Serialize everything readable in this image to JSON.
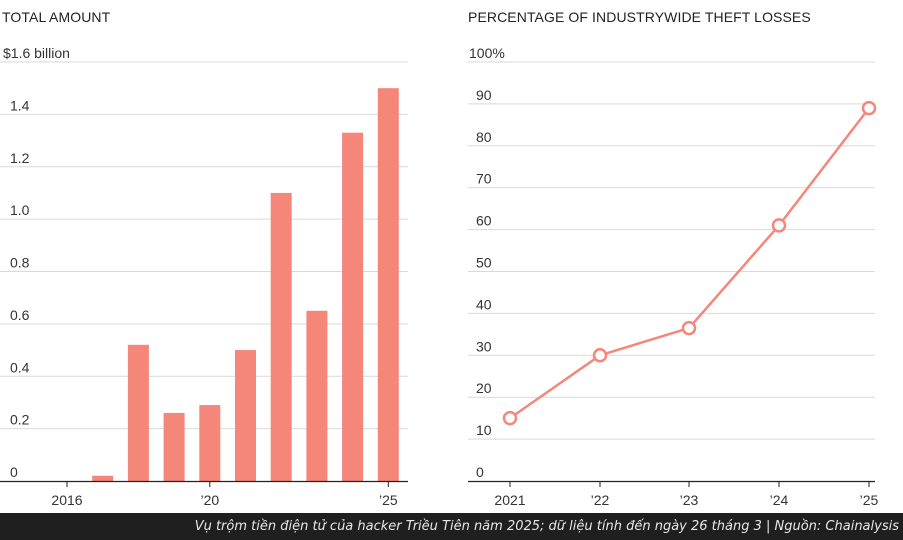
{
  "caption": "Vụ trộm tiền điện tử của hacker Triều Tiên năm 2025; dữ liệu tính đến ngày 26 tháng 3 | Nguồn: Chainalysis",
  "colors": {
    "accent": "#f4877a",
    "grid": "#d9d9d9",
    "axis": "#222222",
    "caption_bg": "#1f1f1f"
  },
  "chart_data": [
    {
      "type": "bar",
      "title": "TOTAL AMOUNT",
      "unit_label": "$1.6 billion",
      "ylim": [
        0,
        1.6
      ],
      "y_ticks": [
        0,
        0.2,
        0.4,
        0.6,
        0.8,
        1.0,
        1.2,
        1.4
      ],
      "y_tick_labels": [
        "0",
        "0.2",
        "0.4",
        "0.6",
        "0.8",
        "1.0",
        "1.2",
        "1.4"
      ],
      "categories": [
        "2016",
        "2017",
        "2018",
        "2019",
        "2020",
        "2021",
        "2022",
        "2023",
        "2024",
        "2025"
      ],
      "x_tick_labels": [
        {
          "category": "2016",
          "label": "2016"
        },
        {
          "category": "2020",
          "label": "’20"
        },
        {
          "category": "2025",
          "label": "’25"
        }
      ],
      "values": [
        0,
        0.02,
        0.52,
        0.26,
        0.29,
        0.5,
        1.1,
        0.65,
        1.33,
        1.5
      ],
      "grid": true
    },
    {
      "type": "line",
      "title": "PERCENTAGE OF INDUSTRYWIDE THEFT LOSSES",
      "unit_label": "100%",
      "ylim": [
        0,
        100
      ],
      "y_ticks": [
        0,
        10,
        20,
        30,
        40,
        50,
        60,
        70,
        80,
        90
      ],
      "y_tick_labels": [
        "0",
        "10",
        "20",
        "30",
        "40",
        "50",
        "60",
        "70",
        "80",
        "90"
      ],
      "x": [
        "2021",
        "2022",
        "2023",
        "2024",
        "2025"
      ],
      "x_tick_labels": [
        "2021",
        "’22",
        "’23",
        "’24",
        "’25"
      ],
      "values": [
        15,
        30,
        36.5,
        61,
        89
      ],
      "grid": true
    }
  ]
}
